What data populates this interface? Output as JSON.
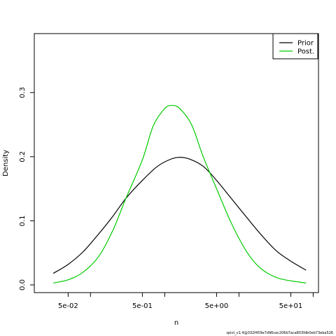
{
  "chart_data": {
    "type": "line",
    "title": "",
    "xlabel": "n",
    "ylabel": "Density",
    "x_scale": "log10",
    "xlim": [
      0.0175,
      118
    ],
    "ylim": [
      -0.012,
      0.392
    ],
    "x_tick_labels": [
      {
        "value": 0.05,
        "label": "5e-02"
      },
      {
        "value": 0.5,
        "label": "5e-01"
      },
      {
        "value": 5,
        "label": "5e+00"
      },
      {
        "value": 50,
        "label": "5e+01"
      }
    ],
    "x_minor_ticks": [
      0.01,
      0.1,
      1,
      10,
      100
    ],
    "y_tick_labels": [
      {
        "value": 0.0,
        "label": "0.0"
      },
      {
        "value": 0.1,
        "label": "0.1"
      },
      {
        "value": 0.2,
        "label": "0.2"
      },
      {
        "value": 0.3,
        "label": "0.3"
      }
    ],
    "grid": false,
    "legend_position": "top-right",
    "series": [
      {
        "name": "Prior",
        "color": "#000000",
        "points": [
          [
            0.0315,
            0.018
          ],
          [
            0.05,
            0.032
          ],
          [
            0.08,
            0.052
          ],
          [
            0.13,
            0.08
          ],
          [
            0.2,
            0.107
          ],
          [
            0.3,
            0.135
          ],
          [
            0.5,
            0.163
          ],
          [
            0.8,
            0.185
          ],
          [
            1.2,
            0.196
          ],
          [
            1.6,
            0.199
          ],
          [
            2.2,
            0.196
          ],
          [
            3.3,
            0.185
          ],
          [
            5.0,
            0.163
          ],
          [
            8.0,
            0.134
          ],
          [
            13,
            0.104
          ],
          [
            20,
            0.078
          ],
          [
            32,
            0.053
          ],
          [
            50,
            0.037
          ],
          [
            80,
            0.023
          ]
        ]
      },
      {
        "name": "Post.",
        "color": "#00cc00",
        "points": [
          [
            0.0315,
            0.003
          ],
          [
            0.05,
            0.008
          ],
          [
            0.08,
            0.02
          ],
          [
            0.13,
            0.045
          ],
          [
            0.2,
            0.085
          ],
          [
            0.3,
            0.135
          ],
          [
            0.5,
            0.195
          ],
          [
            0.7,
            0.248
          ],
          [
            1.0,
            0.275
          ],
          [
            1.25,
            0.28
          ],
          [
            1.6,
            0.275
          ],
          [
            2.3,
            0.25
          ],
          [
            3.3,
            0.2
          ],
          [
            5.0,
            0.15
          ],
          [
            8.0,
            0.095
          ],
          [
            13,
            0.05
          ],
          [
            20,
            0.025
          ],
          [
            35,
            0.01
          ],
          [
            80,
            0.003
          ]
        ]
      }
    ]
  },
  "footer": "spict_v1.4@332f459e7d96cec206b7aca803fdb0eb73eba526"
}
